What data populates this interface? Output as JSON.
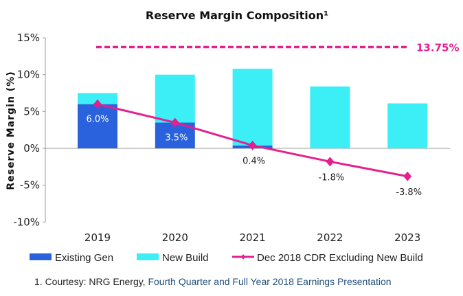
{
  "chart_data": {
    "type": "bar",
    "title": "Reserve Margin Composition¹",
    "xlabel": "",
    "ylabel": "Reserve Margin (%)",
    "ylim": [
      -10,
      15
    ],
    "yticks": [
      "-10%",
      "-5%",
      "0%",
      "5%",
      "10%",
      "15%"
    ],
    "ytick_values": [
      -10,
      -5,
      0,
      5,
      10,
      15
    ],
    "categories": [
      "2019",
      "2020",
      "2021",
      "2022",
      "2023"
    ],
    "stacked": true,
    "grid": false,
    "legend_position": "bottom",
    "series": [
      {
        "name": "Existing Gen",
        "type": "bar",
        "color": "#2a62de",
        "values": [
          6.0,
          3.5,
          0.4,
          0,
          0
        ]
      },
      {
        "name": "New Build",
        "type": "bar",
        "color": "#3ceef6",
        "values": [
          1.5,
          6.5,
          10.4,
          8.4,
          6.1
        ]
      },
      {
        "name": "Dec 2018 CDR Excluding New Build",
        "type": "line",
        "color": "#e4208f",
        "values": [
          6.0,
          3.5,
          0.4,
          -1.8,
          -3.8
        ],
        "labels": [
          "6.0%",
          "3.5%",
          "0.4%",
          "-1.8%",
          "-3.8%"
        ]
      }
    ],
    "reference_line": {
      "value": 13.75,
      "label": "13.75%",
      "color": "#e4208f",
      "style": "dashed"
    }
  },
  "footnote": {
    "prefix": "1. Courtesy: NRG Energy, ",
    "source": "Fourth Quarter and Full Year 2018 Earnings Presentation"
  }
}
